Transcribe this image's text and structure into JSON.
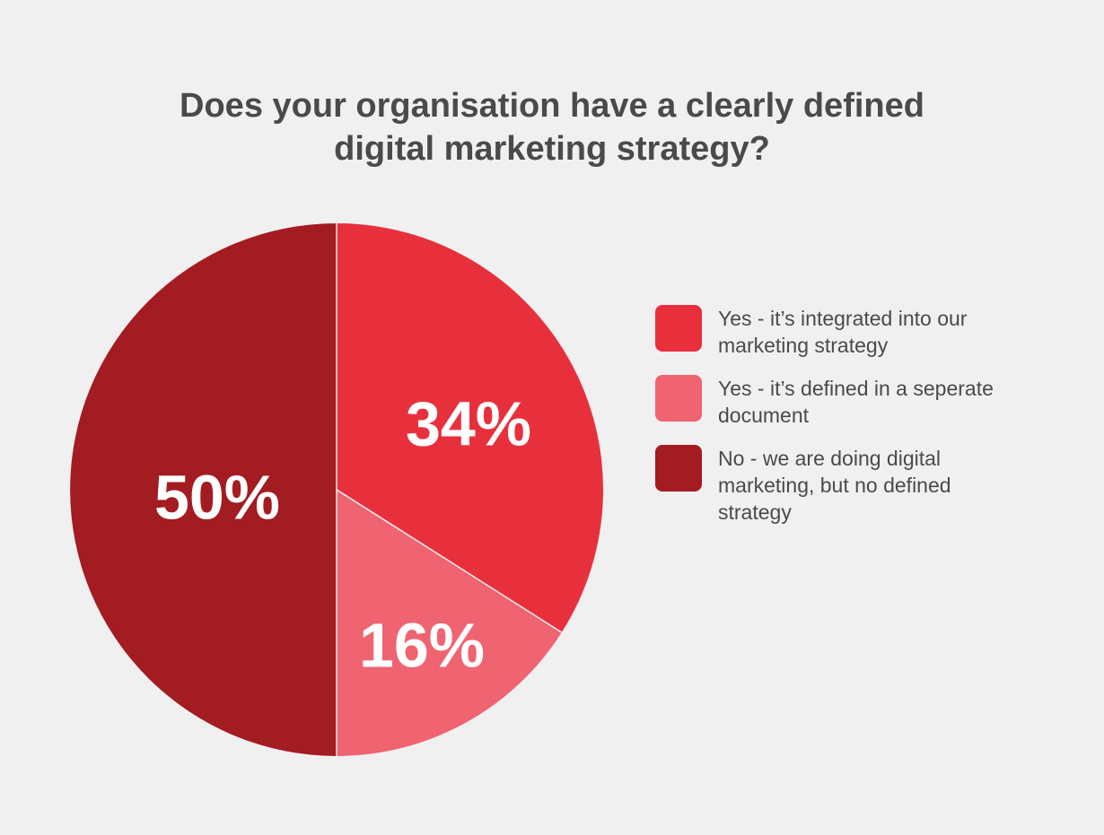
{
  "chart_data": {
    "type": "pie",
    "title_lines": [
      "Does your organisation have a clearly defined",
      "digital marketing strategy?"
    ],
    "slices": [
      {
        "label": "Yes - it’s integrated into our marketing strategy",
        "value": 34,
        "display": "34%",
        "color": "#e8303d"
      },
      {
        "label": "Yes - it’s defined in a seperate document",
        "value": 16,
        "display": "16%",
        "color": "#ef6470"
      },
      {
        "label": "No - we are doing digital marketing, but no defined strategy",
        "value": 50,
        "display": "50%",
        "color": "#a31c22"
      }
    ],
    "legend_placement": "right"
  },
  "legend": {
    "items": [
      {
        "lines": [
          "Yes - it’s integrated into our",
          "marketing strategy"
        ],
        "color": "#e8303d"
      },
      {
        "lines": [
          "Yes - it’s defined in a seperate",
          "document"
        ],
        "color": "#ef6470"
      },
      {
        "lines": [
          "No - we are doing digital",
          "marketing, but no defined",
          "strategy"
        ],
        "color": "#a31c22"
      }
    ]
  },
  "colors": {
    "background": "#f1f0f0",
    "text": "#4a4a4a"
  }
}
